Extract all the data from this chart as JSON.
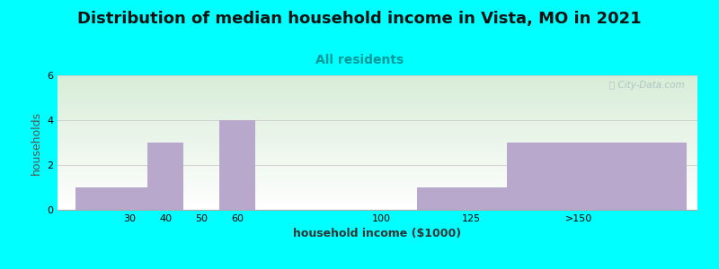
{
  "title": "Distribution of median household income in Vista, MO in 2021",
  "subtitle": "All residents",
  "xlabel": "household income ($1000)",
  "ylabel": "households",
  "background_color": "#00FFFF",
  "bar_color": "#b8a8cc",
  "categories": [
    "30",
    "40",
    "50",
    "60",
    "100",
    "125",
    ">150"
  ],
  "values": [
    1,
    3,
    0,
    4,
    0,
    1,
    3
  ],
  "bar_left_edges": [
    15,
    35,
    45,
    55,
    65,
    110,
    135
  ],
  "bar_widths": [
    20,
    10,
    10,
    10,
    45,
    25,
    50
  ],
  "ylim": [
    0,
    6
  ],
  "xlim": [
    10,
    188
  ],
  "yticks": [
    0,
    2,
    4,
    6
  ],
  "xtick_positions": [
    30,
    40,
    50,
    60,
    100,
    125,
    155
  ],
  "grid_color": "#cccccc",
  "title_fontsize": 13,
  "subtitle_fontsize": 10,
  "subtitle_color": "#009999",
  "axis_label_fontsize": 9,
  "tick_fontsize": 8,
  "watermark_text": "ⓘ City-Data.com",
  "watermark_color": "#a8c0c0",
  "plot_bg_top_color": "#d8edd8",
  "plot_bg_bottom_color": "#ffffff"
}
